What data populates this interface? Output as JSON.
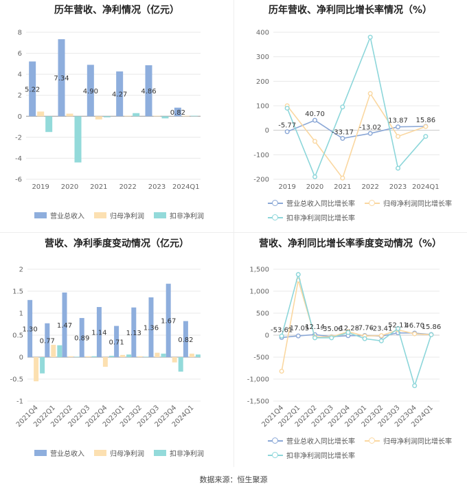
{
  "colors": {
    "revenue": "#8EAEDD",
    "net_profit": "#FCE0B1",
    "deducted_profit": "#93DADA",
    "revenue_line": "#8AA7D6",
    "net_profit_line": "#FAD7A0",
    "deducted_line": "#8CD6DA"
  },
  "source_text": "数据来源：恒生聚源",
  "chart_data": [
    {
      "type": "bar",
      "title": "历年营收、净利情况（亿元）",
      "categories": [
        "2019",
        "2020",
        "2021",
        "2022",
        "2023",
        "2024Q1"
      ],
      "ylim": [
        -6,
        8
      ],
      "yticks": [
        8,
        6,
        4,
        2,
        0,
        -2,
        -4,
        -6
      ],
      "ytick_labels": [
        "8",
        "6",
        "4",
        "2",
        "0",
        "-2",
        "-4",
        "-6"
      ],
      "series": [
        {
          "name": "营业总收入",
          "values": [
            5.22,
            7.34,
            4.9,
            4.27,
            4.86,
            0.82
          ],
          "labels": [
            "5.22",
            "7.34",
            "4.90",
            "4.27",
            "4.86",
            "0.82"
          ]
        },
        {
          "name": "归母净利润",
          "values": [
            0.45,
            0.25,
            -0.3,
            0.05,
            0.05,
            0.05
          ]
        },
        {
          "name": "扣非净利润",
          "values": [
            -1.5,
            -4.4,
            -0.1,
            0.3,
            -0.2,
            0.05
          ]
        }
      ]
    },
    {
      "type": "line",
      "title": "历年营收、净利同比增长率情况（%）",
      "categories": [
        "2019",
        "2020",
        "2021",
        "2022",
        "2023",
        "2024Q1"
      ],
      "ylim": [
        -200,
        400
      ],
      "yticks": [
        400,
        300,
        200,
        100,
        0,
        -100,
        -200
      ],
      "ytick_labels": [
        "400",
        "300",
        "200",
        "100",
        "0",
        "-100",
        "-200"
      ],
      "series": [
        {
          "name": "营业总收入同比增长率",
          "values": [
            -5.77,
            40.7,
            -33.17,
            -13.02,
            13.87,
            15.86
          ],
          "labels": [
            "-5.77",
            "40.70",
            "-33.17",
            "-13.02",
            "13.87",
            "15.86"
          ]
        },
        {
          "name": "归母净利润同比增长率",
          "values": [
            100,
            -45,
            -195,
            150,
            -25,
            15
          ]
        },
        {
          "name": "扣非净利润同比增长率",
          "values": [
            90,
            -190,
            95,
            380,
            -155,
            -25
          ]
        }
      ]
    },
    {
      "type": "bar",
      "title": "营收、净利季度变动情况（亿元）",
      "categories": [
        "2021Q4",
        "2022Q1",
        "2022Q2",
        "2022Q3",
        "2022Q4",
        "2023Q1",
        "2023Q2",
        "2023Q3",
        "2023Q4",
        "2024Q1"
      ],
      "ylim": [
        -1,
        2
      ],
      "yticks": [
        2,
        1.5,
        1,
        0.5,
        0,
        -0.5,
        -1
      ],
      "ytick_labels": [
        "2",
        "1.5",
        "1",
        "0.5",
        "0",
        "-0.5",
        "-1"
      ],
      "series": [
        {
          "name": "营业总收入",
          "values": [
            1.3,
            0.77,
            1.47,
            0.89,
            1.14,
            0.71,
            1.13,
            1.36,
            1.67,
            0.82
          ],
          "labels": [
            "1.30",
            "0.77",
            "1.47",
            "0.89",
            "1.14",
            "0.71",
            "1.13",
            "1.36",
            "1.67",
            "0.82"
          ]
        },
        {
          "name": "归母净利润",
          "values": [
            -0.55,
            0.28,
            0.02,
            0.02,
            -0.22,
            0.05,
            0.02,
            0.1,
            -0.12,
            0.08
          ]
        },
        {
          "name": "扣非净利润",
          "values": [
            -0.37,
            0.27,
            0.01,
            0.02,
            0.03,
            0.06,
            0.01,
            0.08,
            -0.33,
            0.06
          ]
        }
      ]
    },
    {
      "type": "line",
      "title": "营收、净利同比增长率季度变动情况（%）",
      "categories": [
        "2021Q4",
        "2022Q1",
        "2022Q2",
        "2022Q3",
        "2022Q4",
        "2023Q1",
        "2023Q2",
        "2023Q3",
        "2023Q4",
        "2024Q1"
      ],
      "ylim": [
        -1500,
        1500
      ],
      "yticks": [
        1500,
        1000,
        500,
        0,
        -500,
        -1000,
        -1500
      ],
      "ytick_labels": [
        "1,500",
        "1,000",
        "500",
        "0",
        "-500",
        "-1,000",
        "-1,500"
      ],
      "series": [
        {
          "name": "营业总收入同比增长率",
          "values": [
            -53.61,
            -17.05,
            12.14,
            -35.06,
            -12.28,
            -7.76,
            -23.41,
            52.11,
            46.7,
            15.86
          ],
          "labels": [
            "-53.61",
            "-17.05",
            "12.14",
            "-35.06",
            "-12.28",
            "-7.76",
            "-23.41",
            "52.11",
            "46.70",
            "15.86"
          ]
        },
        {
          "name": "归母净利润同比增长率",
          "values": [
            -820,
            1250,
            -40,
            -40,
            80,
            -20,
            -10,
            120,
            30,
            10
          ]
        },
        {
          "name": "扣非净利润同比增长率",
          "values": [
            -20,
            1380,
            -60,
            -60,
            60,
            -80,
            -130,
            150,
            -1150,
            10
          ]
        }
      ]
    }
  ]
}
